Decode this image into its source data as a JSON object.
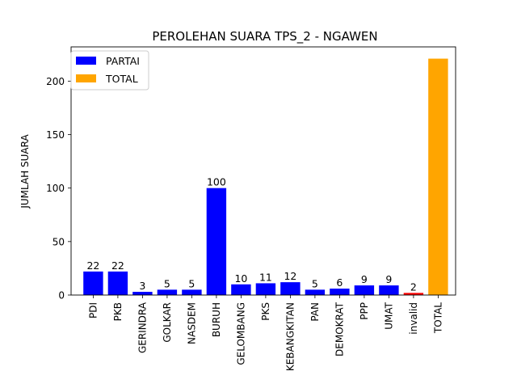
{
  "chart_data": {
    "type": "bar",
    "title": "PEROLEHAN SUARA TPS_2 - NGAWEN",
    "xlabel": "",
    "ylabel": "JUMLAH SUARA",
    "categories": [
      "PDI",
      "PKB",
      "GERINDRA",
      "GOLKAR",
      "NASDEM",
      "BURUH",
      "GELOMBANG",
      "PKS",
      "KEBANGKITAN",
      "PAN",
      "DEMOKRAT",
      "PPP",
      "UMAT",
      "invalid",
      "TOTAL"
    ],
    "values": [
      22,
      22,
      3,
      5,
      5,
      100,
      10,
      11,
      12,
      5,
      6,
      9,
      9,
      2,
      221
    ],
    "data_labels": [
      "22",
      "22",
      "3",
      "5",
      "5",
      "100",
      "10",
      "11",
      "12",
      "5",
      "6",
      "9",
      "9",
      "2",
      ""
    ],
    "bar_colors": [
      "#0000ff",
      "#0000ff",
      "#0000ff",
      "#0000ff",
      "#0000ff",
      "#0000ff",
      "#0000ff",
      "#0000ff",
      "#0000ff",
      "#0000ff",
      "#0000ff",
      "#0000ff",
      "#0000ff",
      "#ff0000",
      "#ffa500"
    ],
    "yticks": [
      0,
      50,
      100,
      150,
      200
    ],
    "ylim": [
      0,
      232
    ],
    "grid": false,
    "legend": {
      "placement": "upper-left",
      "entries": [
        {
          "label": "PARTAI",
          "color": "#0000ff"
        },
        {
          "label": "TOTAL",
          "color": "#ffa500"
        }
      ]
    }
  }
}
